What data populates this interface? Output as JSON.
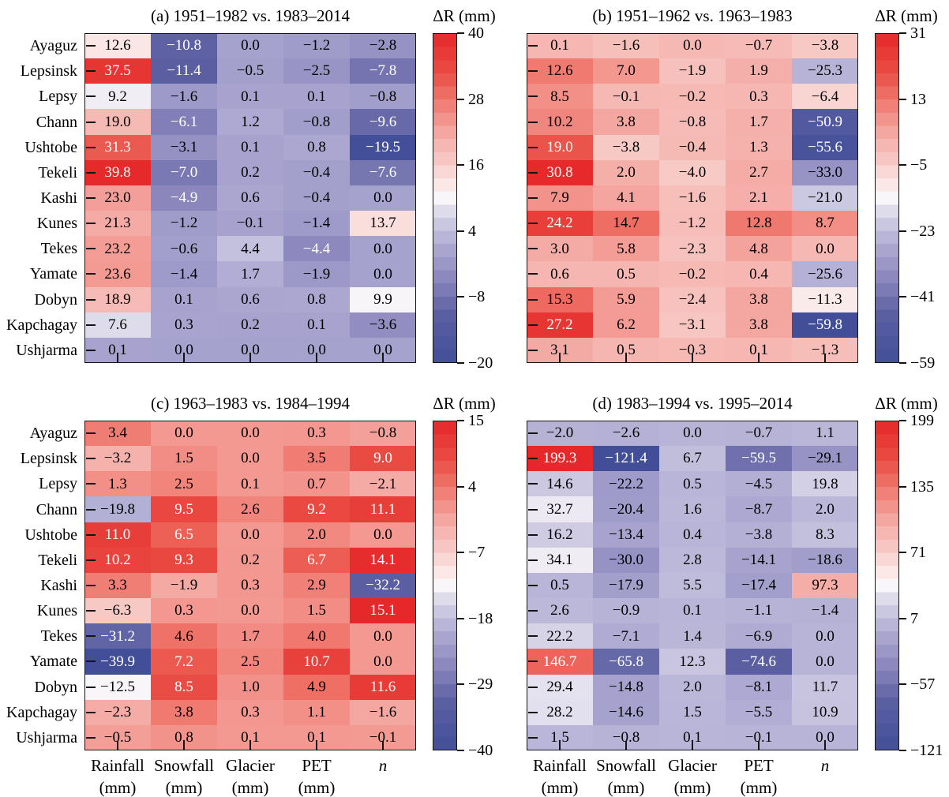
{
  "figure": {
    "colorbar_title": "ΔR (mm)",
    "x_labels": [
      "Rainfall",
      "Snowfall",
      "Glacier",
      "PET",
      "n"
    ],
    "x_units": [
      "(mm)",
      "(mm)",
      "(mm)",
      "(mm)",
      ""
    ]
  },
  "chart_data": {
    "type": "heatmap",
    "colormap": "red-white-indigo diverging",
    "colorbar_label": "ΔR (mm)",
    "rows": [
      "Ayaguz",
      "Lepsinsk",
      "Lepsy",
      "Chann",
      "Ushtobe",
      "Tekeli",
      "Kashi",
      "Kunes",
      "Tekes",
      "Yamate",
      "Dobyn",
      "Kapchagay",
      "Ushjarma"
    ],
    "columns": [
      "Rainfall (mm)",
      "Snowfall (mm)",
      "Glacier (mm)",
      "PET (mm)",
      "n"
    ],
    "panels": [
      {
        "id": "a",
        "title": "(a) 1951–1982 vs. 1983–2014",
        "vmin": -20,
        "vmax": 40,
        "colorbar_ticks": [
          40,
          28,
          16,
          4,
          -8,
          -20
        ],
        "values": [
          [
            12.6,
            -10.8,
            0.0,
            -1.2,
            -2.8
          ],
          [
            37.5,
            -11.4,
            -0.5,
            -2.5,
            -7.8
          ],
          [
            9.2,
            -1.6,
            0.1,
            0.1,
            -0.8
          ],
          [
            19.0,
            -6.1,
            1.2,
            -0.8,
            -9.6
          ],
          [
            31.3,
            -3.1,
            0.1,
            0.8,
            -19.5
          ],
          [
            39.8,
            -7.0,
            0.2,
            -0.4,
            -7.6
          ],
          [
            23.0,
            -4.9,
            0.6,
            -0.4,
            0.0
          ],
          [
            21.3,
            -1.2,
            -0.1,
            -1.4,
            13.7
          ],
          [
            23.2,
            -0.6,
            4.4,
            -4.4,
            0.0
          ],
          [
            23.6,
            -1.4,
            1.7,
            -1.9,
            0.0
          ],
          [
            18.9,
            0.1,
            0.6,
            0.8,
            9.9
          ],
          [
            7.6,
            0.3,
            0.2,
            0.1,
            -3.6
          ],
          [
            0.1,
            0.0,
            0.0,
            0.0,
            0.0
          ]
        ]
      },
      {
        "id": "b",
        "title": "(b) 1951–1962 vs. 1963–1983",
        "vmin": -59,
        "vmax": 31,
        "colorbar_ticks": [
          31,
          13,
          -5,
          -23,
          -41,
          -59
        ],
        "values": [
          [
            0.1,
            -1.6,
            0.0,
            -0.7,
            -3.8
          ],
          [
            12.6,
            7.0,
            -1.9,
            1.9,
            -25.3
          ],
          [
            8.5,
            -0.1,
            -0.2,
            0.3,
            -6.4
          ],
          [
            10.2,
            3.8,
            -0.8,
            1.7,
            -50.9
          ],
          [
            19.0,
            -3.8,
            -0.4,
            1.3,
            -55.6
          ],
          [
            30.8,
            2.0,
            -4.0,
            2.7,
            -33.0
          ],
          [
            7.9,
            4.1,
            -1.6,
            2.1,
            -21.0
          ],
          [
            24.2,
            14.7,
            -1.2,
            12.8,
            8.7
          ],
          [
            3.0,
            5.8,
            -2.3,
            4.8,
            0.0
          ],
          [
            0.6,
            0.5,
            -0.2,
            0.4,
            -25.6
          ],
          [
            15.3,
            5.9,
            -2.4,
            3.8,
            -11.3
          ],
          [
            27.2,
            6.2,
            -3.1,
            3.8,
            -59.8
          ],
          [
            3.1,
            0.5,
            -0.3,
            0.1,
            -1.3
          ]
        ]
      },
      {
        "id": "c",
        "title": "(c) 1963–1983 vs. 1984–1994",
        "vmin": -40,
        "vmax": 15,
        "colorbar_ticks": [
          15,
          4,
          -7,
          -18,
          -29,
          -40
        ],
        "values": [
          [
            3.4,
            0.0,
            0.0,
            0.3,
            -0.8
          ],
          [
            -3.2,
            1.5,
            0.0,
            3.5,
            9.0
          ],
          [
            1.3,
            2.5,
            0.1,
            0.7,
            -2.1
          ],
          [
            -19.8,
            9.5,
            2.6,
            9.2,
            11.1
          ],
          [
            11.0,
            6.5,
            0.0,
            2.0,
            0.0
          ],
          [
            10.2,
            9.3,
            0.2,
            6.7,
            14.1
          ],
          [
            3.3,
            -1.9,
            0.3,
            2.9,
            -32.2
          ],
          [
            -6.3,
            0.3,
            0.0,
            1.5,
            15.1
          ],
          [
            -31.2,
            4.6,
            1.7,
            4.0,
            0.0
          ],
          [
            -39.9,
            7.2,
            2.5,
            10.7,
            0.0
          ],
          [
            -12.5,
            8.5,
            1.0,
            4.9,
            11.6
          ],
          [
            -2.3,
            3.8,
            0.3,
            1.1,
            -1.6
          ],
          [
            -0.5,
            0.8,
            0.1,
            0.1,
            -0.1
          ]
        ]
      },
      {
        "id": "d",
        "title": "(d) 1983–1994 vs. 1995–2014",
        "vmin": -121,
        "vmax": 199,
        "colorbar_ticks": [
          199,
          135,
          71,
          7,
          -57,
          -121
        ],
        "values": [
          [
            -2.0,
            -2.6,
            0.0,
            -0.7,
            1.1
          ],
          [
            199.3,
            -121.4,
            6.7,
            -59.5,
            -29.1
          ],
          [
            14.6,
            -22.2,
            0.5,
            -4.5,
            19.8
          ],
          [
            32.7,
            -20.4,
            1.6,
            -8.7,
            2.0
          ],
          [
            16.2,
            -13.4,
            0.4,
            -3.8,
            8.3
          ],
          [
            34.1,
            -30.0,
            2.8,
            -14.1,
            -18.6
          ],
          [
            0.5,
            -17.9,
            5.5,
            -17.4,
            97.3
          ],
          [
            2.6,
            -0.9,
            0.1,
            -1.1,
            -1.4
          ],
          [
            22.2,
            -7.1,
            1.4,
            -6.9,
            0.0
          ],
          [
            146.7,
            -65.8,
            12.3,
            -74.6,
            0.0
          ],
          [
            29.4,
            -14.8,
            2.0,
            -8.1,
            11.7
          ],
          [
            28.2,
            -14.6,
            1.5,
            -5.5,
            10.9
          ],
          [
            1.5,
            -0.8,
            0.1,
            -0.1,
            0.0
          ]
        ]
      }
    ],
    "colors": {
      "red_max": "#e62a2a",
      "white_mid": "#f9f6f9",
      "blue_min": "#424f98",
      "tick": "#141414"
    }
  }
}
